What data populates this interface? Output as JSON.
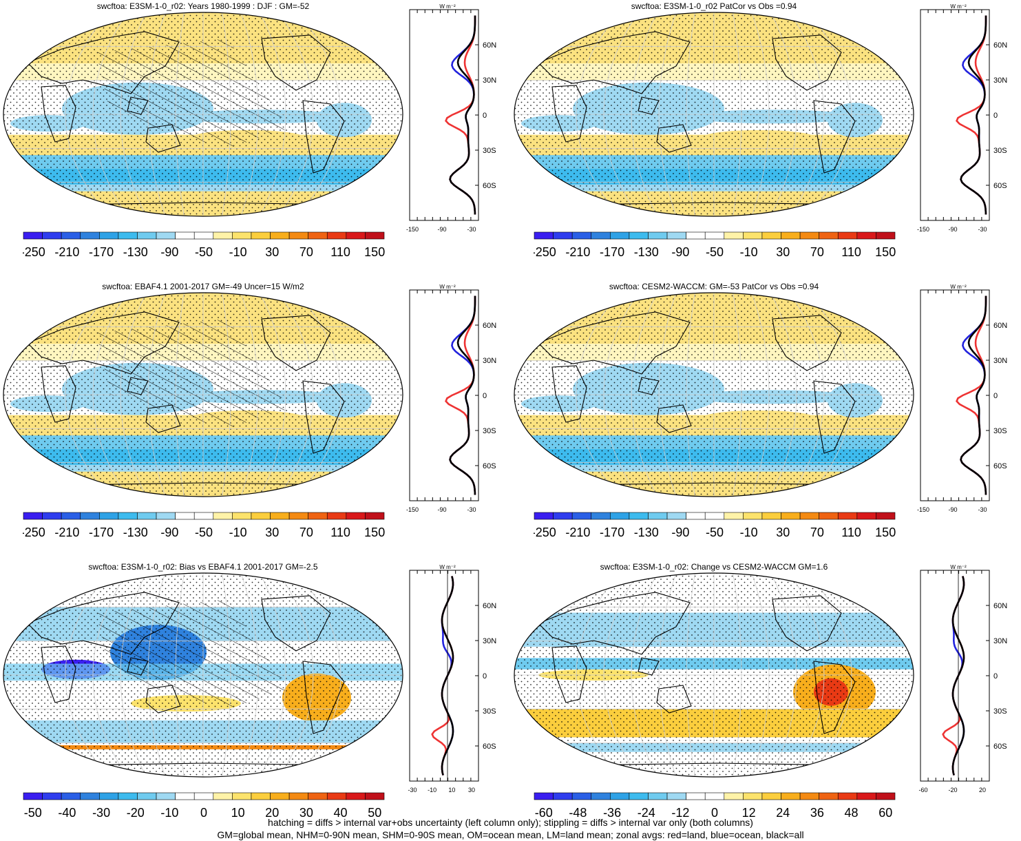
{
  "panels": [
    {
      "title": "swcftoa: E3SM-1-0_r02: Years 1980-1999 : DJF : GM=-52",
      "cbar_ticks": [
        "-250",
        "-210",
        "-170",
        "-130",
        "-90",
        "-50",
        "-10",
        "30",
        "70",
        "110",
        "150"
      ],
      "zonal_x_ticks": [
        "-150",
        "-90",
        "-30"
      ],
      "kind": "abs",
      "hatch": true
    },
    {
      "title": "swcftoa: E3SM-1-0_r02 PatCor vs Obs =0.94",
      "cbar_ticks": [
        "-250",
        "-210",
        "-170",
        "-130",
        "-90",
        "-50",
        "-10",
        "30",
        "70",
        "110",
        "150"
      ],
      "zonal_x_ticks": [
        "-150",
        "-90",
        "-30"
      ],
      "kind": "abs",
      "hatch": false
    },
    {
      "title": "swcftoa: EBAF4.1 2001-2017 GM=-49 Uncer=15 W/m2",
      "cbar_ticks": [
        "-250",
        "-210",
        "-170",
        "-130",
        "-90",
        "-50",
        "-10",
        "30",
        "70",
        "110",
        "150"
      ],
      "zonal_x_ticks": [
        "-150",
        "-90",
        "-30"
      ],
      "kind": "abs",
      "hatch": true
    },
    {
      "title": "swcftoa: CESM2-WACCM: GM=-53 PatCor vs Obs =0.94",
      "cbar_ticks": [
        "-250",
        "-210",
        "-170",
        "-130",
        "-90",
        "-50",
        "-10",
        "30",
        "70",
        "110",
        "150"
      ],
      "zonal_x_ticks": [
        "-150",
        "-90",
        "-30"
      ],
      "kind": "abs",
      "hatch": false
    },
    {
      "title": "swcftoa: E3SM-1-0_r02: Bias vs EBAF4.1 2001-2017 GM=-2.5",
      "cbar_ticks": [
        "-50",
        "-40",
        "-30",
        "-20",
        "-10",
        "0",
        "10",
        "20",
        "30",
        "40",
        "50"
      ],
      "zonal_x_ticks": [
        "-30",
        "-10",
        "10",
        "30"
      ],
      "kind": "diff1",
      "hatch": true
    },
    {
      "title": "swcftoa: E3SM-1-0_r02: Change vs CESM2-WACCM GM=1.6",
      "cbar_ticks": [
        "-60",
        "-48",
        "-36",
        "-24",
        "-12",
        "0",
        "12",
        "24",
        "36",
        "48",
        "60"
      ],
      "zonal_x_ticks": [
        "-60",
        "-20",
        "20"
      ],
      "kind": "diff2",
      "hatch": false
    }
  ],
  "zonal_lat_ticks": [
    "60N",
    "30N",
    "0",
    "30S",
    "60S"
  ],
  "zonal_unit": "W m⁻²",
  "colors": {
    "abs_scale": [
      "#3a1ef0",
      "#2f3dee",
      "#2a5fe6",
      "#2f82de",
      "#2ea2e6",
      "#3dbbee",
      "#6fcbef",
      "#9fd9f2",
      "#ffffff",
      "#ffffff",
      "#fff3a8",
      "#fce36c",
      "#fbce3d",
      "#f8ae1c",
      "#f48a12",
      "#ef6312",
      "#e93a14",
      "#d9181a",
      "#c0101a"
    ],
    "diff_scale": [
      "#3a1ef0",
      "#2f3dee",
      "#2a5fe6",
      "#2f82de",
      "#2ea2e6",
      "#3dbbee",
      "#6fcbef",
      "#9fd9f2",
      "#ffffff",
      "#ffffff",
      "#fff3a8",
      "#fce36c",
      "#fbce3d",
      "#f8ae1c",
      "#f48a12",
      "#ef6312",
      "#e93a14",
      "#d9181a",
      "#c0101a"
    ],
    "land": "#e33",
    "ocean": "#22d",
    "all": "#000"
  },
  "footer": {
    "line1": "hatching = diffs > internal var+obs uncertainty (left column only); stippling = diffs > internal var only (both columns)",
    "line2": "GM=global mean, NHM=0-90N mean, SHM=0-90S mean, OM=ocean mean, LM=land mean; zonal avgs: red=land, blue=ocean, black=all"
  }
}
